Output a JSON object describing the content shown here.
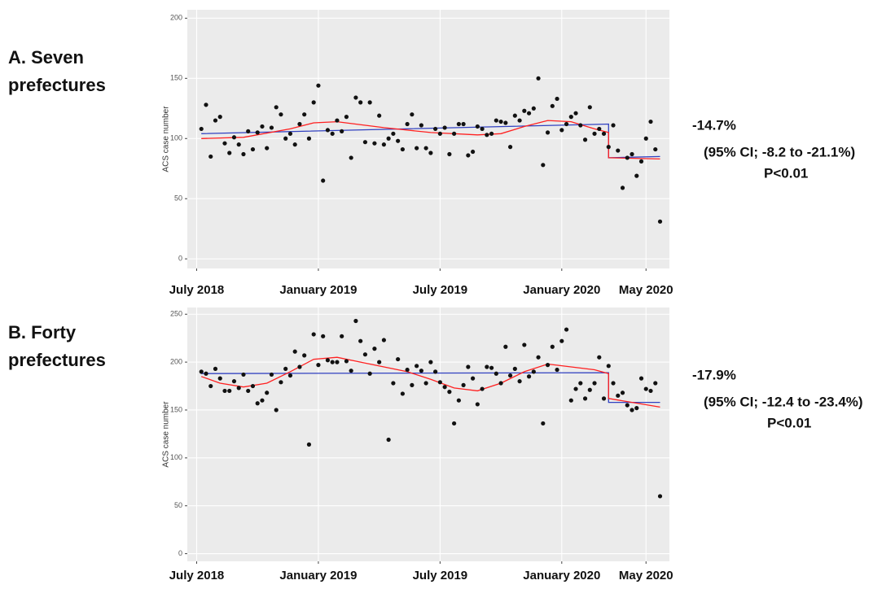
{
  "chart_data": [
    {
      "type": "scatter",
      "panel": [
        "A.  Seven",
        "prefectures"
      ],
      "ylabel": "ACS case number",
      "annotations": [
        "-14.7%",
        "(95% CI; -8.2 to -21.1%)",
        "P<0.01"
      ],
      "xlim": [
        -2,
        101
      ],
      "xticks": [
        {
          "value": 0,
          "label": "July 2018"
        },
        {
          "value": 26,
          "label": "January 2019"
        },
        {
          "value": 52,
          "label": "July 2019"
        },
        {
          "value": 78,
          "label": "January 2020"
        },
        {
          "value": 96,
          "label": "May 2020"
        }
      ],
      "ylim": [
        -8,
        207
      ],
      "yticks": [
        0,
        50,
        100,
        150,
        200
      ],
      "grid": true,
      "points": {
        "color": "#111111",
        "x": [
          1,
          2,
          3,
          4,
          5,
          6,
          7,
          8,
          9,
          10,
          11,
          12,
          13,
          14,
          15,
          16,
          17,
          18,
          19,
          20,
          21,
          22,
          23,
          24,
          25,
          26,
          27,
          28,
          29,
          30,
          31,
          32,
          33,
          34,
          35,
          36,
          37,
          38,
          39,
          40,
          41,
          42,
          43,
          44,
          45,
          46,
          47,
          48,
          49,
          50,
          51,
          52,
          53,
          54,
          55,
          56,
          57,
          58,
          59,
          60,
          61,
          62,
          63,
          64,
          65,
          66,
          67,
          68,
          69,
          70,
          71,
          72,
          73,
          74,
          75,
          76,
          77,
          78,
          79,
          80,
          81,
          82,
          83,
          84,
          85,
          86,
          87,
          88,
          89,
          90,
          91,
          92,
          93,
          94,
          95,
          96,
          97,
          98,
          99
        ],
        "values": [
          108,
          128,
          85,
          115,
          118,
          96,
          88,
          101,
          95,
          87,
          106,
          91,
          105,
          110,
          92,
          109,
          126,
          120,
          100,
          104,
          95,
          112,
          120,
          100,
          130,
          144,
          65,
          107,
          104,
          115,
          106,
          118,
          84,
          134,
          130,
          97,
          130,
          96,
          119,
          95,
          100,
          104,
          98,
          91,
          112,
          120,
          92,
          111,
          92,
          88,
          108,
          104,
          109,
          87,
          104,
          112,
          112,
          86,
          89,
          110,
          108,
          103,
          104,
          115,
          114,
          113,
          93,
          119,
          115,
          123,
          121,
          125,
          150,
          78,
          105,
          127,
          133,
          107,
          112,
          118,
          121,
          111,
          99,
          126,
          104,
          108,
          104,
          93,
          111,
          90,
          59,
          84,
          87,
          69,
          81,
          100,
          114,
          91,
          31
        ]
      },
      "lines": [
        {
          "color": "#3040c0",
          "x": [
            1,
            88,
            88,
            99
          ],
          "values": [
            104,
            112,
            84,
            85
          ]
        },
        {
          "color": "#ff2020",
          "x": [
            1,
            10,
            20,
            25,
            30,
            40,
            50,
            60,
            65,
            70,
            75,
            80,
            85,
            88,
            88,
            99
          ],
          "values": [
            100,
            101,
            108,
            113,
            114,
            109,
            105,
            103,
            104,
            110,
            115,
            114,
            108,
            105,
            84,
            83
          ]
        }
      ]
    },
    {
      "type": "scatter",
      "panel": [
        "B. Forty",
        "prefectures"
      ],
      "ylabel": "ACS case number",
      "annotations": [
        "-17.9%",
        "(95% CI; -12.4 to -23.4%)",
        "P<0.01"
      ],
      "xlim": [
        -2,
        101
      ],
      "xticks": [
        {
          "value": 0,
          "label": "July 2018"
        },
        {
          "value": 26,
          "label": "January 2019"
        },
        {
          "value": 52,
          "label": "July 2019"
        },
        {
          "value": 78,
          "label": "January 2020"
        },
        {
          "value": 96,
          "label": "May 2020"
        }
      ],
      "ylim": [
        -8,
        257
      ],
      "yticks": [
        0,
        50,
        100,
        150,
        200,
        250
      ],
      "grid": true,
      "points": {
        "color": "#111111",
        "x": [
          1,
          2,
          3,
          4,
          5,
          6,
          7,
          8,
          9,
          10,
          11,
          12,
          13,
          14,
          15,
          16,
          17,
          18,
          19,
          20,
          21,
          22,
          23,
          24,
          25,
          26,
          27,
          28,
          29,
          30,
          31,
          32,
          33,
          34,
          35,
          36,
          37,
          38,
          39,
          40,
          41,
          42,
          43,
          44,
          45,
          46,
          47,
          48,
          49,
          50,
          51,
          52,
          53,
          54,
          55,
          56,
          57,
          58,
          59,
          60,
          61,
          62,
          63,
          64,
          65,
          66,
          67,
          68,
          69,
          70,
          71,
          72,
          73,
          74,
          75,
          76,
          77,
          78,
          79,
          80,
          81,
          82,
          83,
          84,
          85,
          86,
          87,
          88,
          89,
          90,
          91,
          92,
          93,
          94,
          95,
          96,
          97,
          98,
          99
        ],
        "values": [
          190,
          188,
          175,
          193,
          183,
          170,
          170,
          180,
          173,
          187,
          170,
          175,
          157,
          160,
          168,
          187,
          150,
          179,
          193,
          186,
          211,
          195,
          207,
          114,
          229,
          197,
          227,
          202,
          200,
          200,
          227,
          201,
          191,
          243,
          222,
          208,
          188,
          214,
          200,
          223,
          119,
          178,
          203,
          167,
          192,
          176,
          196,
          191,
          178,
          200,
          190,
          179,
          174,
          169,
          136,
          160,
          176,
          195,
          183,
          156,
          172,
          195,
          194,
          188,
          178,
          216,
          186,
          193,
          180,
          218,
          185,
          190,
          205,
          136,
          197,
          216,
          192,
          222,
          234,
          160,
          172,
          178,
          162,
          171,
          178,
          205,
          162,
          196,
          178,
          165,
          168,
          155,
          150,
          152,
          183,
          172,
          170,
          178,
          60
        ]
      },
      "lines": [
        {
          "color": "#3040c0",
          "x": [
            1,
            88,
            88,
            99
          ],
          "values": [
            188,
            189,
            158,
            158
          ]
        },
        {
          "color": "#ff2020",
          "x": [
            1,
            5,
            10,
            15,
            20,
            25,
            30,
            35,
            40,
            45,
            50,
            55,
            60,
            65,
            70,
            75,
            80,
            85,
            88,
            88,
            99
          ],
          "values": [
            185,
            178,
            174,
            178,
            190,
            203,
            205,
            200,
            195,
            190,
            182,
            173,
            170,
            178,
            190,
            198,
            195,
            192,
            188,
            162,
            153
          ]
        }
      ]
    }
  ]
}
